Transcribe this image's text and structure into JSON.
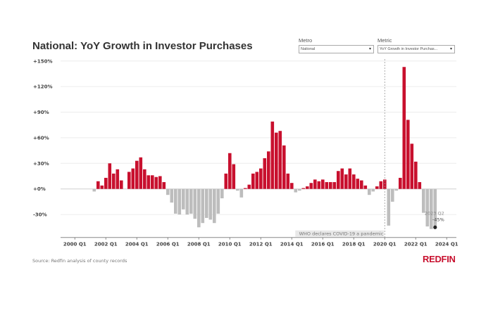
{
  "title": "National: YoY Growth in Investor Purchases",
  "filters": {
    "metro": {
      "label": "Metro",
      "value": "National"
    },
    "metric": {
      "label": "Metric",
      "value": "YoY Growth in Investor Purchas..."
    }
  },
  "source": "Source: Redfin analysis of county records",
  "logo": "REDFIN",
  "colors": {
    "positive": "#c8102e",
    "negative": "#bdbdbd",
    "annotation": "#999999"
  },
  "chart_data": {
    "type": "bar",
    "title": "National: YoY Growth in Investor Purchases",
    "x_start": "2000 Q1",
    "x_end": "2023 Q2",
    "frequency": "quarterly",
    "xticks": [
      "2000 Q1",
      "2002 Q1",
      "2004 Q1",
      "2006 Q1",
      "2008 Q1",
      "2010 Q1",
      "2012 Q1",
      "2014 Q1",
      "2016 Q1",
      "2018 Q1",
      "2020 Q1",
      "2022 Q1",
      "2024 Q1"
    ],
    "yticks": [
      {
        "value": 150,
        "label": "+150%"
      },
      {
        "value": 120,
        "label": "+120%"
      },
      {
        "value": 90,
        "label": "+90%"
      },
      {
        "value": 60,
        "label": "+60%"
      },
      {
        "value": 30,
        "label": "+30%"
      },
      {
        "value": 0,
        "label": "+0%"
      },
      {
        "value": -30,
        "label": "-30%"
      }
    ],
    "ylim": [
      -57,
      152
    ],
    "grid": true,
    "values": [
      0,
      0,
      0,
      0,
      0,
      -3,
      9,
      4,
      13,
      30,
      18,
      23,
      10,
      0,
      20,
      24,
      33,
      37,
      23,
      16,
      16,
      14,
      15,
      8,
      -7,
      -16,
      -29,
      -30,
      -24,
      -30,
      -29,
      -35,
      -45,
      -40,
      -34,
      -36,
      -40,
      -29,
      -11,
      18,
      42,
      29,
      -2,
      -10,
      1,
      5,
      18,
      20,
      24,
      36,
      44,
      79,
      66,
      68,
      51,
      18,
      7,
      -4,
      -2,
      1,
      3,
      7,
      11,
      9,
      11,
      8,
      8,
      8,
      21,
      24,
      17,
      24,
      17,
      12,
      10,
      4,
      -7,
      -3,
      3,
      9,
      11,
      -43,
      -15,
      -2,
      13,
      143,
      81,
      53,
      32,
      8,
      -28,
      -44,
      -47,
      -45
    ],
    "annotations": [
      {
        "at": "2020 Q1",
        "type": "vertical-dashed-line",
        "text": "WHO declares COVID-19 a pandemic"
      },
      {
        "at": "2023 Q2",
        "label": "2023 Q2",
        "value_label": "-45%",
        "marker": "dot"
      }
    ]
  }
}
